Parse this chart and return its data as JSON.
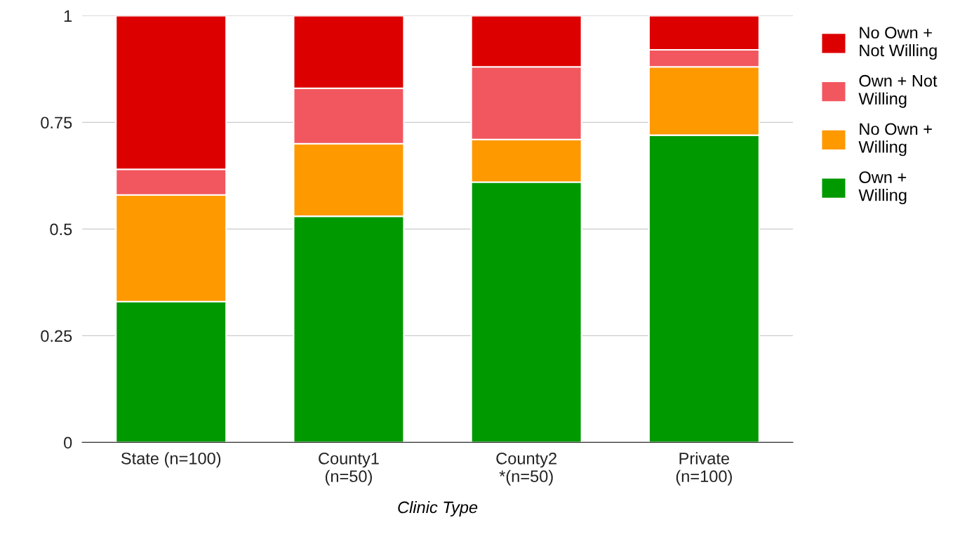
{
  "chart_data": {
    "type": "bar",
    "stacked": true,
    "xlabel": "Clinic Type",
    "categories": [
      "State (n=100)",
      "County1\n(n=50)",
      "County2\n*(n=50)",
      "Private\n(n=100)"
    ],
    "series": [
      {
        "name": "Own +\nWilling",
        "color": "#009900",
        "values": [
          0.33,
          0.53,
          0.61,
          0.72
        ]
      },
      {
        "name": "No Own +\nWilling",
        "color": "#ff9900",
        "values": [
          0.25,
          0.17,
          0.1,
          0.16
        ]
      },
      {
        "name": "Own + Not\nWilling",
        "color": "#f2575f",
        "values": [
          0.06,
          0.13,
          0.17,
          0.04
        ]
      },
      {
        "name": "No Own +\nNot Willing",
        "color": "#dd0000",
        "values": [
          0.36,
          0.17,
          0.12,
          0.08
        ]
      }
    ],
    "ylim": [
      0,
      1
    ],
    "yticks": [
      0,
      0.25,
      0.5,
      0.75,
      1
    ],
    "grid": "y",
    "legend": "right"
  }
}
